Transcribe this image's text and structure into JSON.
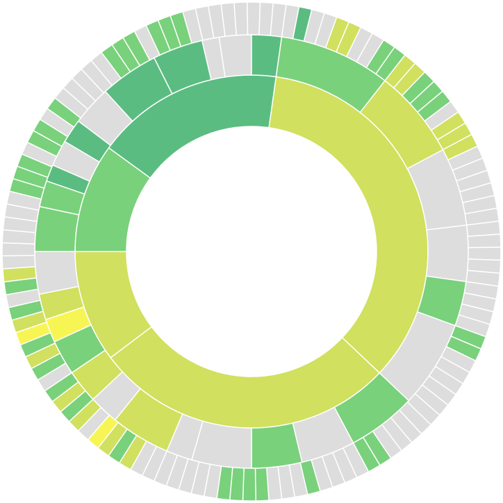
{
  "chart_data": {
    "type": "sunburst",
    "palette": {
      "d": "#5bbc82",
      "g": "#79d17b",
      "y": "#d1e05e",
      "b": "#f7f554",
      "x": "#dddddd"
    },
    "rings": [
      {
        "values": [
          125.5,
          99.5,
          37,
          36,
          62
        ],
        "colors": [
          "y",
          "y",
          "y",
          "g",
          "d"
        ]
      },
      {
        "values": [
          30,
          24,
          21,
          15,
          12,
          23.5,
          18.5,
          14.5,
          13.5,
          16,
          7,
          16,
          8,
          9,
          9.4,
          6.3,
          6.9,
          11.4,
          12,
          7,
          4.5,
          7,
          6.5,
          10.6,
          15.7,
          13.5,
          4.6,
          8.6,
          8
        ],
        "colors": [
          "g",
          "y",
          "x",
          "x",
          "g",
          "x",
          "g",
          "x",
          "g",
          "x",
          "x",
          "y",
          "x",
          "y",
          "g",
          "b",
          "y",
          "x",
          "g",
          "g",
          "d",
          "x",
          "d",
          "x",
          "d",
          "d",
          "x",
          "x",
          "d"
        ]
      },
      {
        "values": [
          3,
          3,
          3,
          3,
          3,
          3,
          3,
          3,
          3,
          3,
          3,
          3,
          3,
          3,
          3,
          3,
          3,
          3,
          3,
          3,
          3,
          3,
          3,
          3,
          3,
          3,
          3,
          3,
          3,
          3,
          3,
          3,
          3,
          3,
          3,
          3,
          3,
          3,
          3,
          3,
          3,
          3,
          3,
          3,
          3,
          3,
          3,
          3,
          3,
          3,
          3,
          3,
          3,
          3,
          3,
          3,
          3,
          3,
          3,
          3,
          3,
          3,
          3,
          3,
          3,
          3,
          3,
          3,
          3,
          3,
          3,
          3,
          3,
          3,
          3,
          3,
          3,
          3,
          3,
          3,
          3,
          3,
          3,
          3,
          3,
          3,
          3,
          3,
          3,
          3,
          3,
          3,
          3,
          3,
          3,
          3,
          3,
          3,
          3,
          3,
          3,
          3,
          3,
          3,
          3,
          3,
          3,
          3,
          3,
          3,
          3,
          3,
          3,
          3,
          3,
          3,
          3,
          3,
          3,
          3
        ],
        "colors": [
          "x",
          "d",
          "x",
          "x",
          "y",
          "y",
          "x",
          "x",
          "g",
          "g",
          "y",
          "y",
          "g",
          "g",
          "g",
          "x",
          "y",
          "y",
          "y",
          "x",
          "x",
          "x",
          "x",
          "x",
          "x",
          "x",
          "x",
          "x",
          "x",
          "x",
          "x",
          "x",
          "x",
          "x",
          "g",
          "g",
          "x",
          "x",
          "x",
          "x",
          "x",
          "x",
          "x",
          "x",
          "x",
          "x",
          "g",
          "g",
          "x",
          "x",
          "x",
          "x",
          "g",
          "x",
          "x",
          "x",
          "g",
          "g",
          "g",
          "g",
          "x",
          "x",
          "x",
          "x",
          "x",
          "x",
          "x",
          "y",
          "g",
          "y",
          "b",
          "x",
          "y",
          "g",
          "y",
          "g",
          "x",
          "g",
          "y",
          "g",
          "b",
          "y",
          "g",
          "x",
          "g",
          "y",
          "x",
          "x",
          "x",
          "x",
          "x",
          "x",
          "g",
          "g",
          "g",
          "x",
          "g",
          "g",
          "x",
          "g",
          "x",
          "x",
          "x",
          "x",
          "x",
          "g",
          "g",
          "g",
          "x",
          "g",
          "g",
          "g",
          "x",
          "x",
          "x",
          "x",
          "x",
          "x",
          "x",
          "x"
        ]
      }
    ]
  }
}
